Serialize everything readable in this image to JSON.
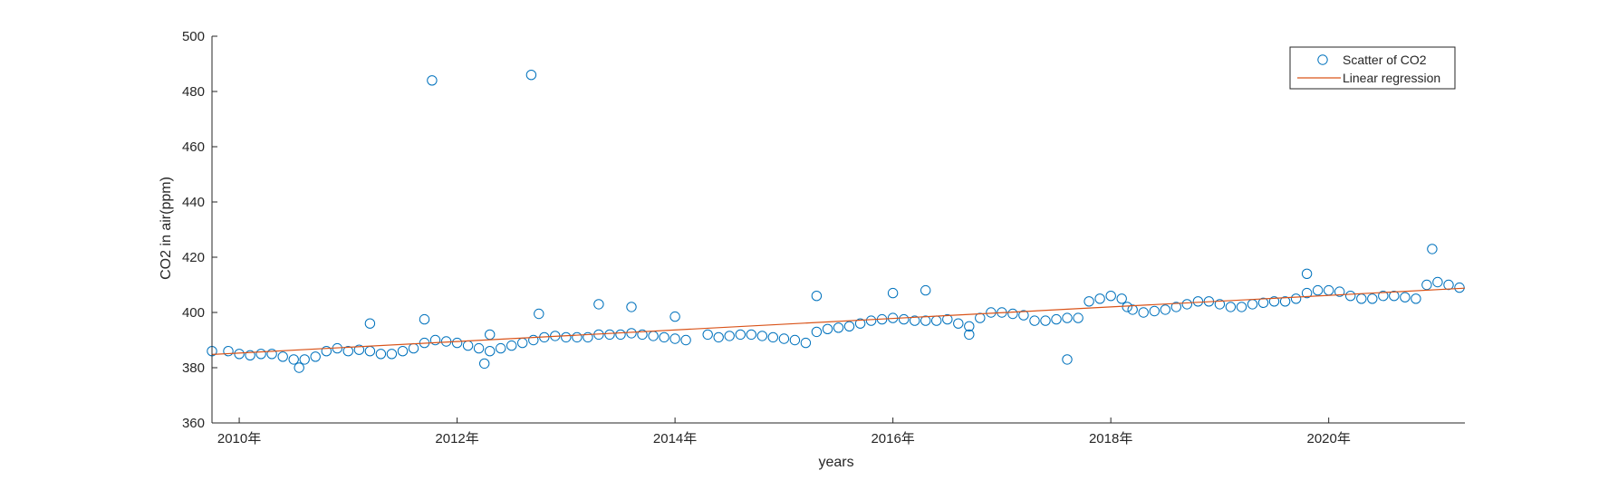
{
  "chart_data": {
    "type": "scatter",
    "xlabel": "years",
    "ylabel": "CO2 in air(ppm)",
    "xlim": [
      2009.75,
      2021.25
    ],
    "ylim": [
      360,
      500
    ],
    "yticks": [
      360,
      380,
      400,
      420,
      440,
      460,
      480,
      500
    ],
    "xticks": [
      {
        "value": 2010,
        "label": "2010年"
      },
      {
        "value": 2012,
        "label": "2012年"
      },
      {
        "value": 2014,
        "label": "2014年"
      },
      {
        "value": 2016,
        "label": "2016年"
      },
      {
        "value": 2018,
        "label": "2018年"
      },
      {
        "value": 2020,
        "label": "2020年"
      }
    ],
    "grid": false,
    "legend_position": "top-right",
    "series": [
      {
        "name": "Scatter of CO2",
        "kind": "scatter",
        "marker": "open-circle",
        "color": "#0072BD",
        "points": [
          [
            2009.75,
            386
          ],
          [
            2009.9,
            386
          ],
          [
            2010.0,
            385
          ],
          [
            2010.1,
            384.5
          ],
          [
            2010.2,
            385
          ],
          [
            2010.3,
            385
          ],
          [
            2010.4,
            384
          ],
          [
            2010.5,
            383
          ],
          [
            2010.55,
            380
          ],
          [
            2010.6,
            383
          ],
          [
            2010.7,
            384
          ],
          [
            2010.8,
            386
          ],
          [
            2010.9,
            387
          ],
          [
            2011.0,
            386
          ],
          [
            2011.1,
            386.5
          ],
          [
            2011.2,
            386
          ],
          [
            2011.3,
            385
          ],
          [
            2011.4,
            385
          ],
          [
            2011.5,
            386
          ],
          [
            2011.6,
            387
          ],
          [
            2011.7,
            389
          ],
          [
            2011.8,
            390
          ],
          [
            2011.9,
            389.5
          ],
          [
            2012.0,
            389
          ],
          [
            2012.1,
            388
          ],
          [
            2012.2,
            387
          ],
          [
            2012.3,
            386
          ],
          [
            2012.4,
            387
          ],
          [
            2012.5,
            388
          ],
          [
            2012.6,
            389
          ],
          [
            2012.7,
            390
          ],
          [
            2012.8,
            391
          ],
          [
            2012.9,
            391.5
          ],
          [
            2013.0,
            391
          ],
          [
            2013.1,
            391
          ],
          [
            2013.2,
            391
          ],
          [
            2013.3,
            392
          ],
          [
            2013.4,
            392
          ],
          [
            2013.5,
            392
          ],
          [
            2013.6,
            392.5
          ],
          [
            2013.7,
            392
          ],
          [
            2013.8,
            391.5
          ],
          [
            2013.9,
            391
          ],
          [
            2014.0,
            390.5
          ],
          [
            2014.1,
            390
          ],
          [
            2014.3,
            392
          ],
          [
            2014.4,
            391
          ],
          [
            2014.5,
            391.5
          ],
          [
            2014.6,
            392
          ],
          [
            2014.7,
            392
          ],
          [
            2014.8,
            391.5
          ],
          [
            2014.9,
            391
          ],
          [
            2015.0,
            390.5
          ],
          [
            2015.1,
            390
          ],
          [
            2015.2,
            389
          ],
          [
            2015.3,
            393
          ],
          [
            2015.4,
            394
          ],
          [
            2015.5,
            394.5
          ],
          [
            2015.6,
            395
          ],
          [
            2015.7,
            396
          ],
          [
            2015.8,
            397
          ],
          [
            2015.9,
            397.5
          ],
          [
            2016.0,
            398
          ],
          [
            2016.1,
            397.5
          ],
          [
            2016.2,
            397
          ],
          [
            2016.3,
            397
          ],
          [
            2016.4,
            397
          ],
          [
            2016.5,
            397.5
          ],
          [
            2016.6,
            396
          ],
          [
            2016.7,
            395
          ],
          [
            2016.8,
            398
          ],
          [
            2016.9,
            400
          ],
          [
            2017.0,
            400
          ],
          [
            2017.1,
            399.5
          ],
          [
            2017.2,
            399
          ],
          [
            2017.3,
            397
          ],
          [
            2017.4,
            397
          ],
          [
            2017.5,
            397.5
          ],
          [
            2017.6,
            398
          ],
          [
            2017.7,
            398
          ],
          [
            2017.8,
            404
          ],
          [
            2017.9,
            405
          ],
          [
            2018.0,
            406
          ],
          [
            2018.1,
            405
          ],
          [
            2018.15,
            402
          ],
          [
            2018.2,
            401
          ],
          [
            2018.3,
            400
          ],
          [
            2018.4,
            400.5
          ],
          [
            2018.5,
            401
          ],
          [
            2018.6,
            402
          ],
          [
            2018.7,
            403
          ],
          [
            2018.8,
            404
          ],
          [
            2018.9,
            404
          ],
          [
            2019.0,
            403
          ],
          [
            2019.1,
            402
          ],
          [
            2019.2,
            402
          ],
          [
            2019.3,
            403
          ],
          [
            2019.4,
            403.5
          ],
          [
            2019.5,
            404
          ],
          [
            2019.6,
            404
          ],
          [
            2019.7,
            405
          ],
          [
            2019.8,
            407
          ],
          [
            2019.9,
            408
          ],
          [
            2020.0,
            408
          ],
          [
            2020.1,
            407.5
          ],
          [
            2020.2,
            406
          ],
          [
            2020.3,
            405
          ],
          [
            2020.4,
            405
          ],
          [
            2020.5,
            406
          ],
          [
            2020.6,
            406
          ],
          [
            2020.7,
            405.5
          ],
          [
            2020.8,
            405
          ],
          [
            2020.9,
            410
          ],
          [
            2021.0,
            411
          ],
          [
            2021.1,
            410
          ],
          [
            2021.2,
            409
          ],
          [
            2011.2,
            396
          ],
          [
            2011.7,
            397.5
          ],
          [
            2011.77,
            484
          ],
          [
            2012.25,
            381.5
          ],
          [
            2012.3,
            392
          ],
          [
            2012.68,
            486
          ],
          [
            2012.75,
            399.5
          ],
          [
            2013.3,
            403
          ],
          [
            2013.6,
            402
          ],
          [
            2014.0,
            398.5
          ],
          [
            2015.3,
            406
          ],
          [
            2016.0,
            407
          ],
          [
            2016.3,
            408
          ],
          [
            2016.7,
            392
          ],
          [
            2017.6,
            383
          ],
          [
            2019.8,
            414
          ],
          [
            2020.95,
            423
          ]
        ]
      },
      {
        "name": "Linear regression",
        "kind": "line",
        "color": "#D95319",
        "points": [
          [
            2009.75,
            384.8
          ],
          [
            2021.25,
            408.8
          ]
        ]
      }
    ]
  }
}
